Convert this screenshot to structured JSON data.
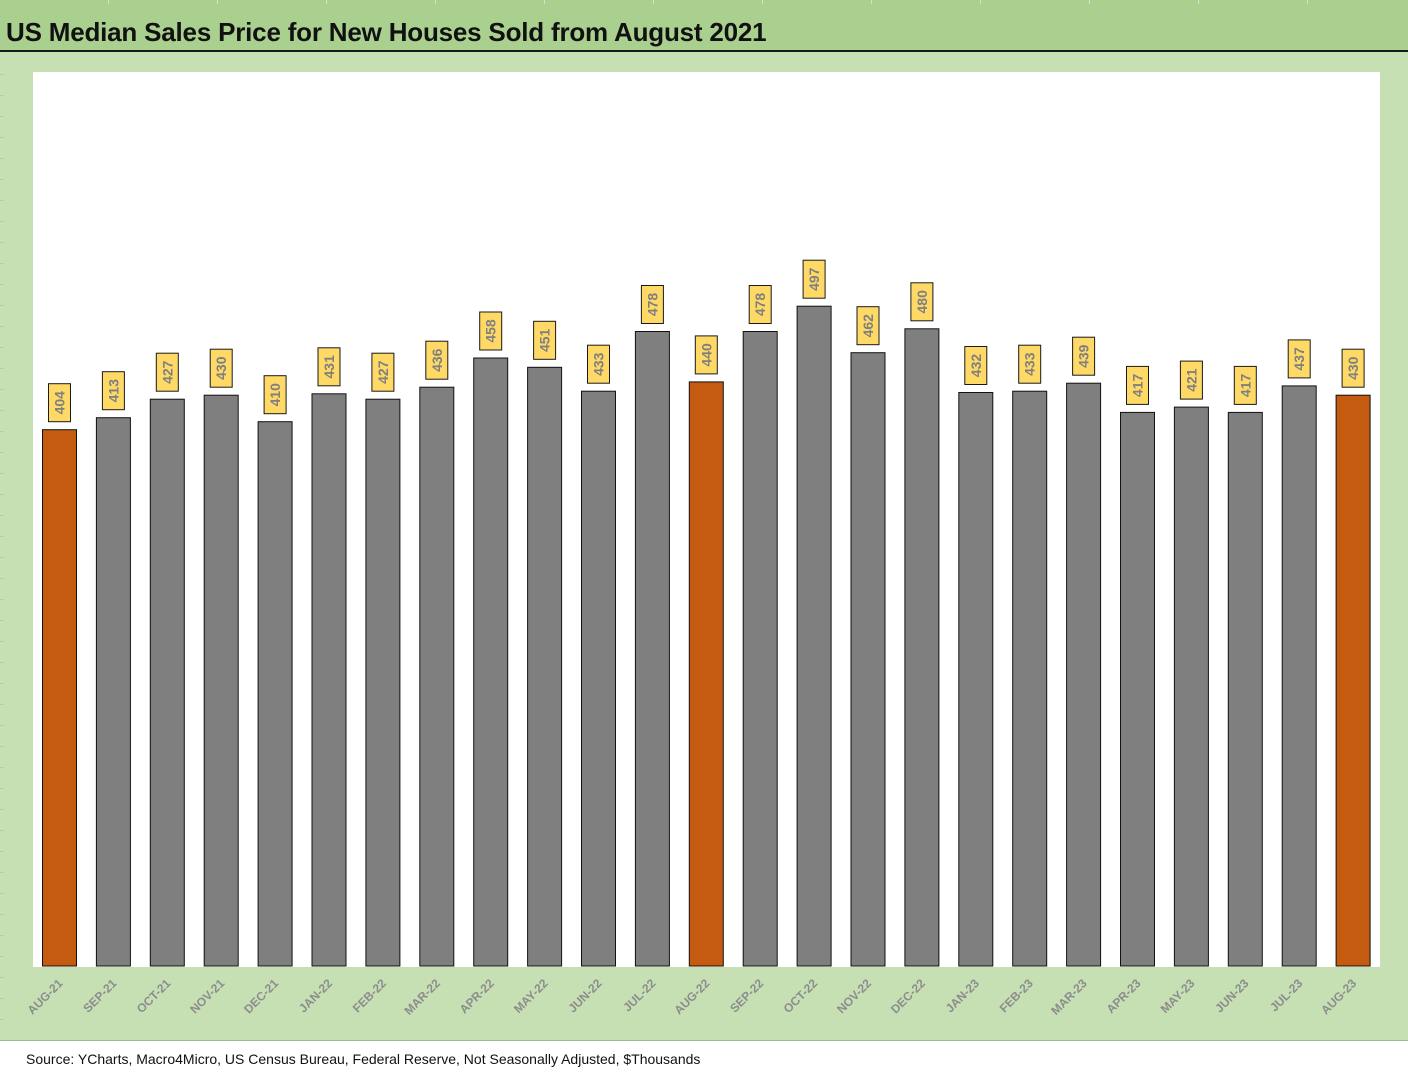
{
  "title": "US Median Sales Price for New Houses Sold from August 2021",
  "source": "Source: YCharts, Macro4Micro, US Census Bureau, Federal Reserve, Not Seasonally Adjusted, $Thousands",
  "colors": {
    "highlight": "#c55a11",
    "normal": "#7f7f7f",
    "label_box": "#ffd966",
    "plot_bg": "#ffffff",
    "frame_bg": "#c6e0b4",
    "title_bg": "#a9d08e"
  },
  "chart_data": {
    "type": "bar",
    "title": "US Median Sales Price for New Houses Sold from August 2021",
    "xlabel": "",
    "ylabel": "",
    "ylim": [
      0,
      540
    ],
    "grid": false,
    "legend": "none",
    "categories": [
      "AUG-21",
      "SEP-21",
      "OCT-21",
      "NOV-21",
      "DEC-21",
      "JAN-22",
      "FEB-22",
      "MAR-22",
      "APR-22",
      "MAY-22",
      "JUN-22",
      "JUL-22",
      "AUG-22",
      "SEP-22",
      "OCT-22",
      "NOV-22",
      "DEC-22",
      "JAN-23",
      "FEB-23",
      "MAR-23",
      "APR-23",
      "MAY-23",
      "JUN-23",
      "JUL-23",
      "AUG-23"
    ],
    "values": [
      404,
      413,
      427,
      430,
      410,
      431,
      427,
      436,
      458,
      451,
      433,
      478,
      440,
      478,
      497,
      462,
      480,
      432,
      433,
      439,
      417,
      421,
      417,
      437,
      430
    ],
    "highlighted": [
      "AUG-21",
      "AUG-22",
      "AUG-23"
    ]
  }
}
